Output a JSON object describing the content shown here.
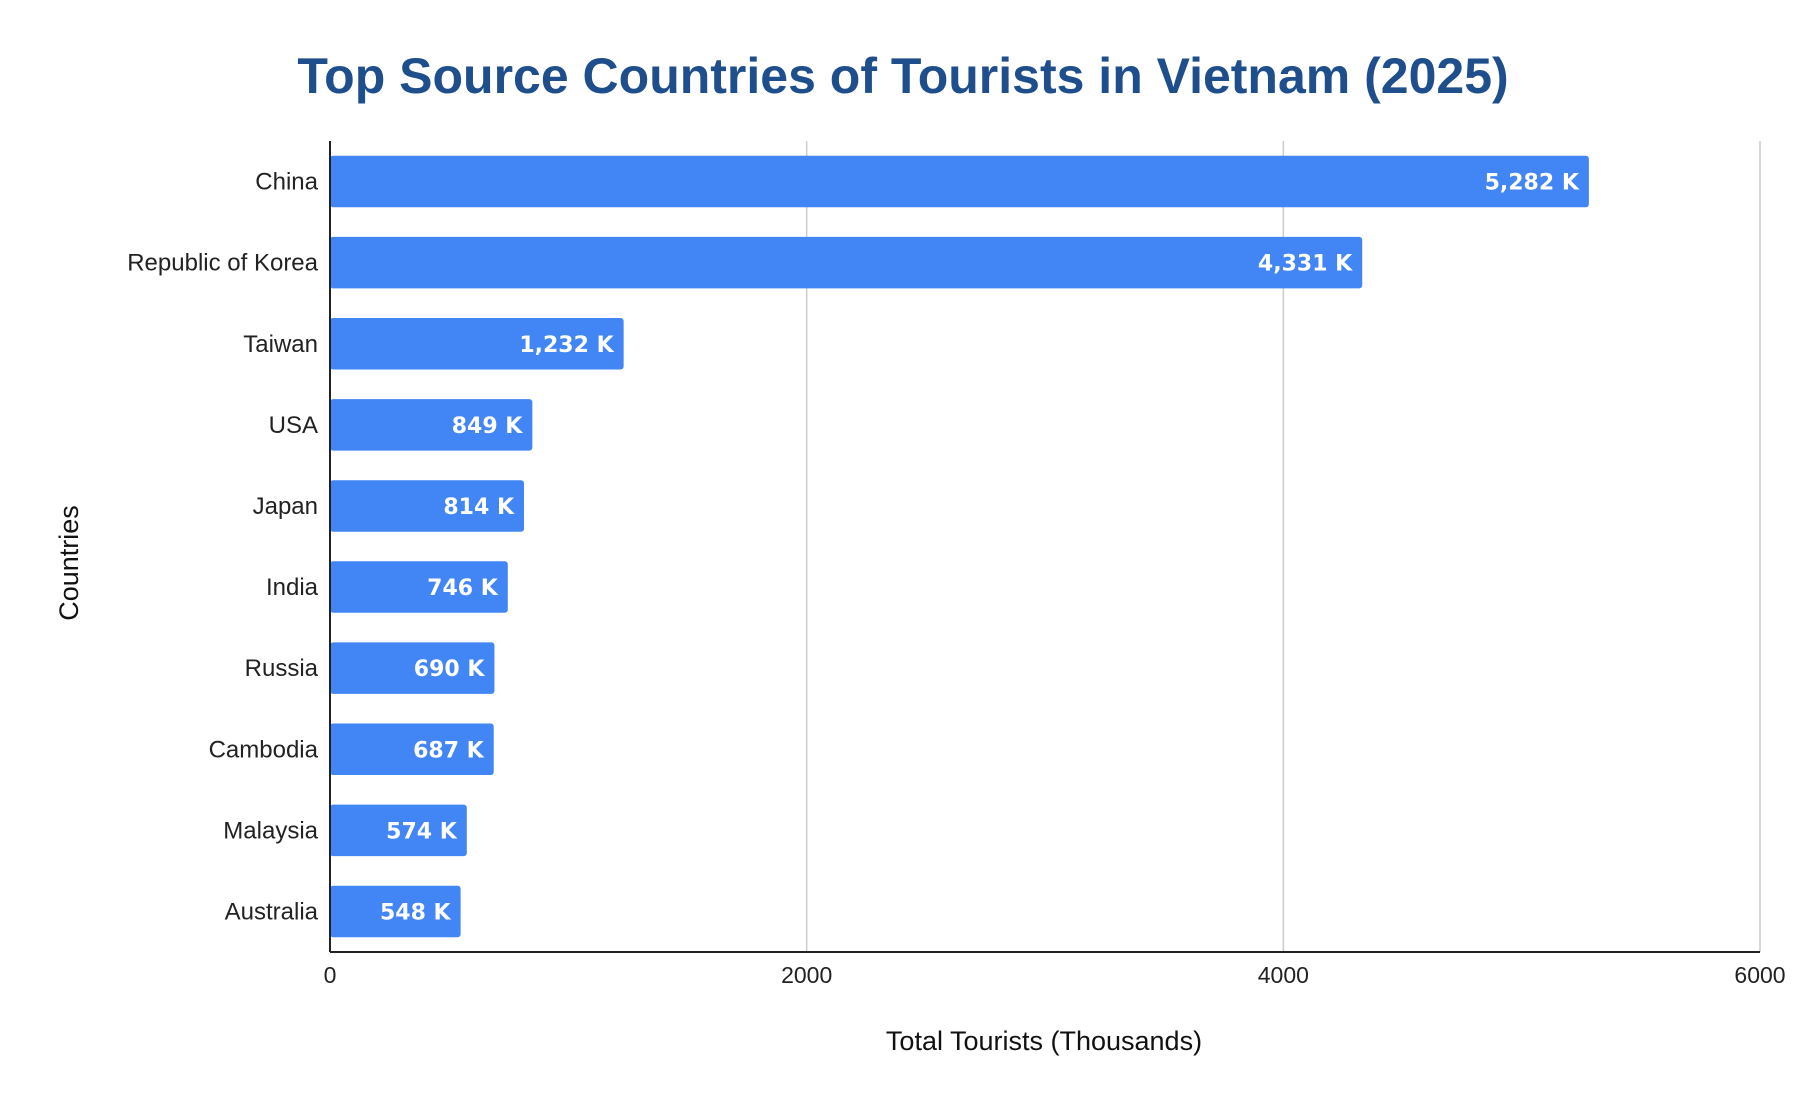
{
  "chart_data": {
    "type": "bar",
    "orientation": "horizontal",
    "title": "Top Source Countries of Tourists in Vietnam (2025)",
    "xlabel": "Total Tourists (Thousands)",
    "ylabel": "Countries",
    "categories": [
      "China",
      "Republic of Korea",
      "Taiwan",
      "USA",
      "Japan",
      "India",
      "Russia",
      "Cambodia",
      "Malaysia",
      "Australia"
    ],
    "values": [
      5282,
      4331,
      1232,
      849,
      814,
      746,
      690,
      687,
      574,
      548
    ],
    "data_labels": [
      "5,282 K",
      "4,331 K",
      "1,232 K",
      "849 K",
      "814 K",
      "746 K",
      "690 K",
      "687 K",
      "574 K",
      "548 K"
    ],
    "xlim": [
      0,
      6000
    ],
    "xticks": [
      0,
      2000,
      4000,
      6000
    ],
    "xtick_labels": [
      "0",
      "2000",
      "4000",
      "6000"
    ],
    "grid": "vertical",
    "legend": "none",
    "colors": {
      "bar": "#4285f4",
      "title": "#1f4e8c",
      "grid": "#cccccc"
    }
  }
}
